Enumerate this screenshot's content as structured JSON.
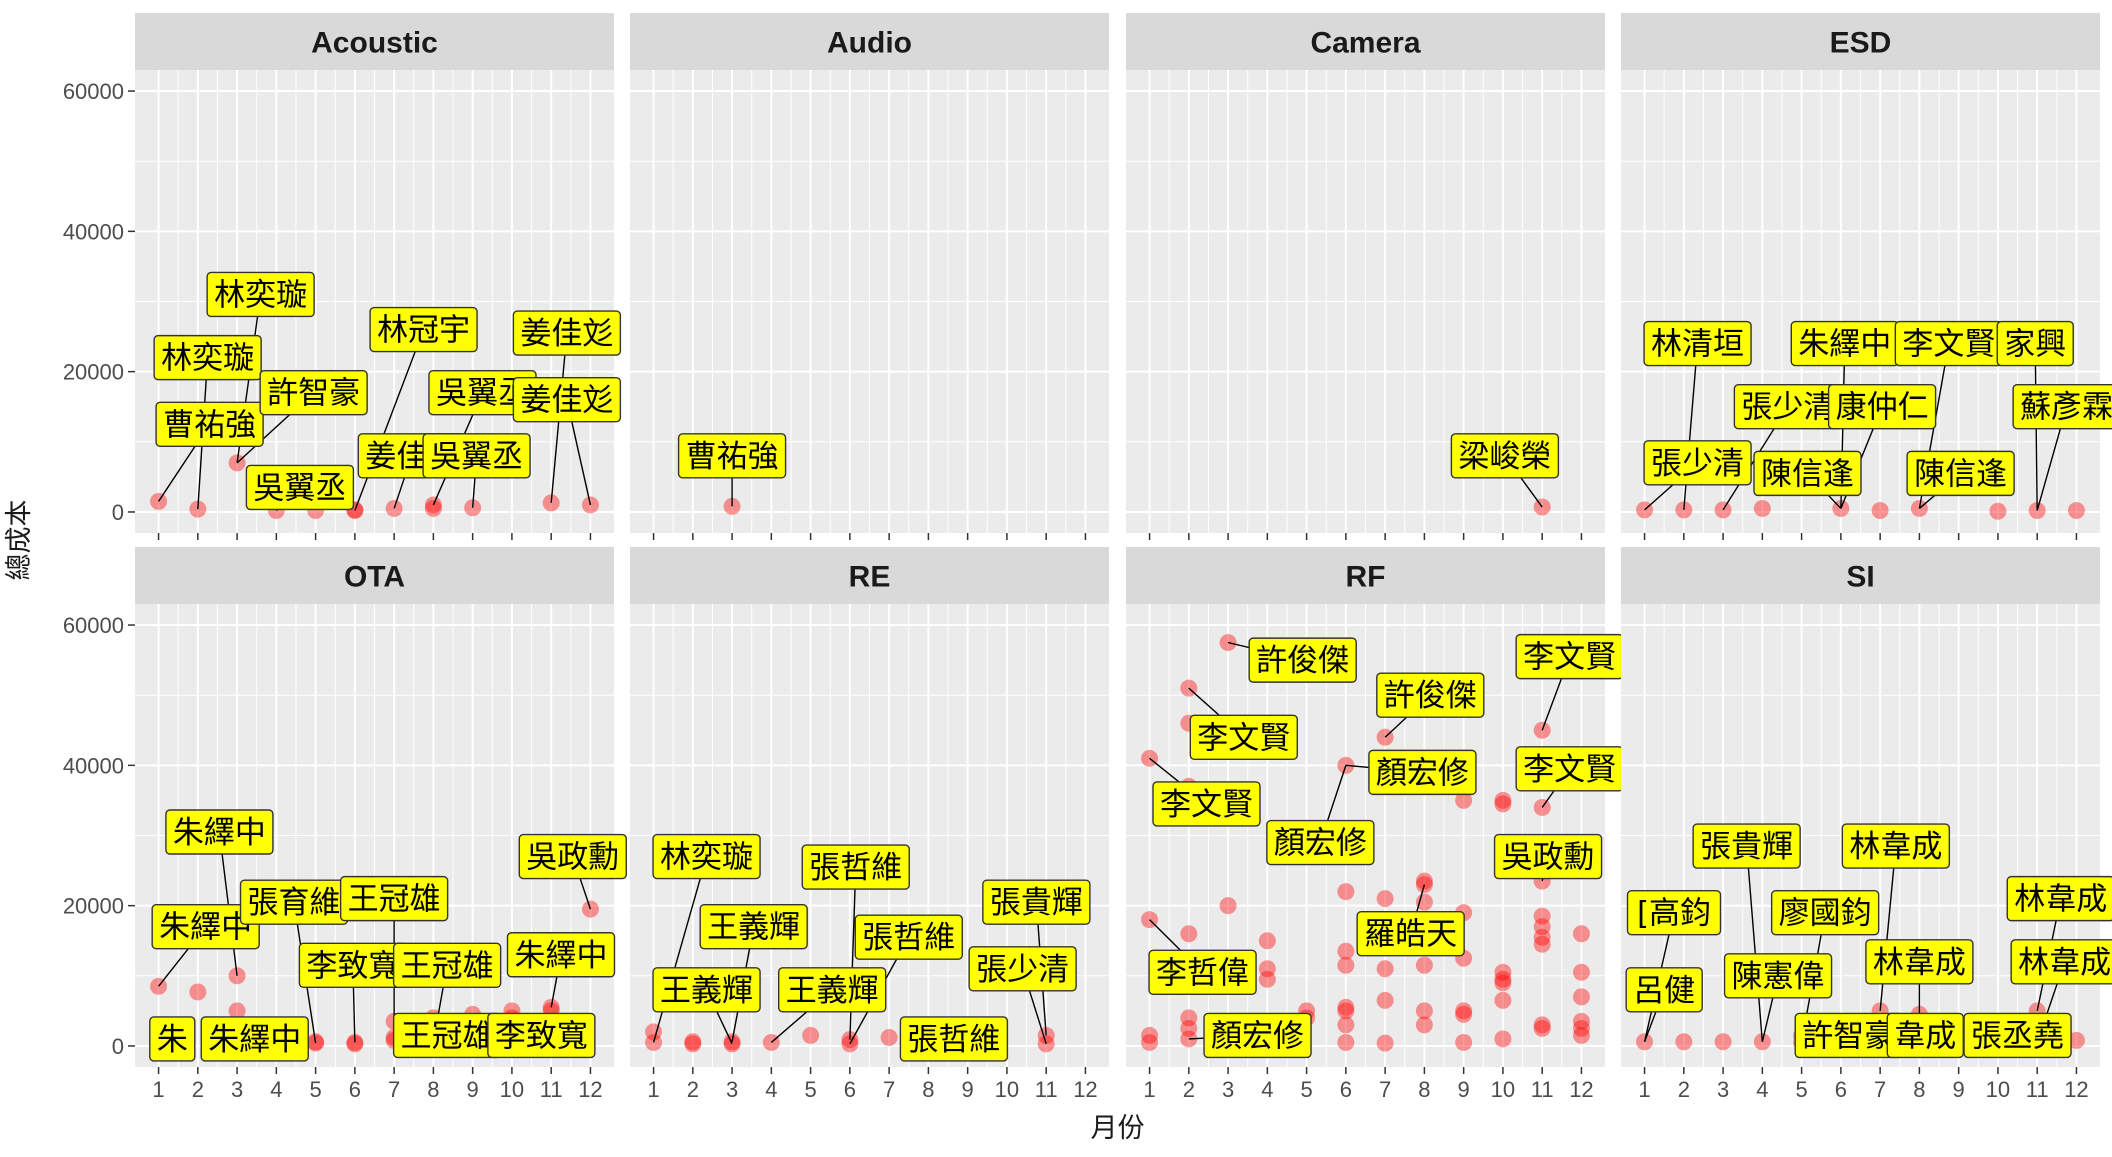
{
  "chart_data": {
    "type": "scatter",
    "facet_layout": "2 rows x 4 columns",
    "xlabel": "月份",
    "ylabel": "總成本",
    "x_ticks": [
      "1",
      "2",
      "3",
      "4",
      "5",
      "6",
      "7",
      "8",
      "9",
      "10",
      "11",
      "12"
    ],
    "y_ticks": [
      "0",
      "20000",
      "40000",
      "60000"
    ],
    "xlim": [
      0.4,
      12.6
    ],
    "ylim": [
      -3000,
      63000
    ],
    "grid": true,
    "point_color": "#ff0000",
    "point_opacity": 0.4,
    "label_fill": "#ffff00",
    "panel_background": "#ebebeb",
    "strip_background": "#d9d9d9",
    "panels": [
      {
        "name": "Acoustic",
        "points": [
          [
            1,
            1500
          ],
          [
            2,
            400
          ],
          [
            3,
            7000
          ],
          [
            4,
            200
          ],
          [
            5,
            200
          ],
          [
            6,
            200
          ],
          [
            6,
            300
          ],
          [
            7,
            500
          ],
          [
            8,
            500
          ],
          [
            8,
            1000
          ],
          [
            9,
            600
          ],
          [
            11,
            1300
          ],
          [
            12,
            1000
          ]
        ],
        "labels": [
          {
            "text": "林奕璇",
            "x": 3,
            "y": 7000,
            "lx": 3.6,
            "ly": 31000
          },
          {
            "text": "林奕璇",
            "x": 2,
            "y": 400,
            "lx": 2.25,
            "ly": 22000
          },
          {
            "text": "曹祐強",
            "x": 1,
            "y": 1500,
            "lx": 2.3,
            "ly": 12500
          },
          {
            "text": "許智豪",
            "x": 3,
            "y": 7000,
            "lx": 4.95,
            "ly": 17000
          },
          {
            "text": "吳翼丞",
            "x": 4,
            "y": 200,
            "lx": 4.6,
            "ly": 3500
          },
          {
            "text": "林冠宇",
            "x": 6,
            "y": 200,
            "lx": 7.75,
            "ly": 26000
          },
          {
            "text": "姜佳彣",
            "x": 7,
            "y": 500,
            "lx": 7.45,
            "ly": 8000
          },
          {
            "text": "吳翼丞",
            "x": 8,
            "y": 1000,
            "lx": 9.25,
            "ly": 17000
          },
          {
            "text": "吳翼丞",
            "x": 9,
            "y": 600,
            "lx": 9.1,
            "ly": 8000
          },
          {
            "text": "姜佳彣",
            "x": 11,
            "y": 1300,
            "lx": 11.4,
            "ly": 25500
          },
          {
            "text": "姜佳彣",
            "x": 12,
            "y": 1000,
            "lx": 11.4,
            "ly": 16000
          }
        ]
      },
      {
        "name": "Audio",
        "points": [
          [
            3,
            800
          ]
        ],
        "labels": [
          {
            "text": "曹祐強",
            "x": 3,
            "y": 800,
            "lx": 3,
            "ly": 8000
          }
        ]
      },
      {
        "name": "Camera",
        "points": [
          [
            11,
            700
          ]
        ],
        "labels": [
          {
            "text": "梁峻榮",
            "x": 11,
            "y": 700,
            "lx": 10.05,
            "ly": 8000
          }
        ]
      },
      {
        "name": "ESD",
        "points": [
          [
            1,
            300
          ],
          [
            2,
            300
          ],
          [
            3,
            300
          ],
          [
            4,
            500
          ],
          [
            6,
            500
          ],
          [
            7,
            200
          ],
          [
            8,
            500
          ],
          [
            10,
            100
          ],
          [
            11,
            200
          ],
          [
            12,
            200
          ]
        ],
        "labels": [
          {
            "text": "林清垣",
            "x": 2,
            "y": 300,
            "lx": 2.35,
            "ly": 24000
          },
          {
            "text": "張少清",
            "x": 1,
            "y": 300,
            "lx": 2.35,
            "ly": 7000
          },
          {
            "text": "張少清",
            "x": 3,
            "y": 300,
            "lx": 4.65,
            "ly": 15000
          },
          {
            "text": "朱繹中",
            "x": 6,
            "y": 500,
            "lx": 6.1,
            "ly": 24000
          },
          {
            "text": "康仲仁",
            "x": 6,
            "y": 500,
            "lx": 7.05,
            "ly": 15000
          },
          {
            "text": "陳信逢",
            "x": 6,
            "y": 500,
            "lx": 5.15,
            "ly": 5500
          },
          {
            "text": "李文賢",
            "x": 8,
            "y": 500,
            "lx": 8.75,
            "ly": 24000
          },
          {
            "text": "家興",
            "x": 11,
            "y": 200,
            "lx": 10.95,
            "ly": 24000
          },
          {
            "text": "陳信逢",
            "x": 8,
            "y": 500,
            "lx": 9.05,
            "ly": 5500
          },
          {
            "text": "蘇彥霖",
            "x": 11,
            "y": 200,
            "lx": 11.75,
            "ly": 15000
          }
        ]
      },
      {
        "name": "OTA",
        "points": [
          [
            1,
            8500
          ],
          [
            2,
            7700
          ],
          [
            3,
            10000
          ],
          [
            3,
            5000
          ],
          [
            4,
            2000
          ],
          [
            4,
            500
          ],
          [
            5,
            400
          ],
          [
            6,
            500
          ],
          [
            6,
            300
          ],
          [
            7,
            3500
          ],
          [
            7,
            1200
          ],
          [
            7,
            800
          ],
          [
            8,
            4000
          ],
          [
            9,
            4500
          ],
          [
            10,
            5000
          ],
          [
            10,
            4000
          ],
          [
            11,
            5500
          ],
          [
            11,
            5000
          ],
          [
            11,
            800
          ],
          [
            12,
            19500
          ],
          [
            5,
            600
          ],
          [
            8,
            600
          ]
        ],
        "labels": [
          {
            "text": "朱繹中",
            "x": 3,
            "y": 10000,
            "lx": 2.55,
            "ly": 30500
          },
          {
            "text": "朱繹中",
            "x": 1,
            "y": 8500,
            "lx": 2.2,
            "ly": 17000
          },
          {
            "text": "朱",
            "x": 1,
            "y": 500,
            "lx": 1.35,
            "ly": 1000
          },
          {
            "text": "朱繹中",
            "x": 3,
            "y": 500,
            "lx": 3.45,
            "ly": 1000
          },
          {
            "text": "張育維",
            "x": 5,
            "y": 400,
            "lx": 4.45,
            "ly": 20500
          },
          {
            "text": "王冠雄",
            "x": 7,
            "y": 1200,
            "lx": 7.0,
            "ly": 21000
          },
          {
            "text": "李致寬",
            "x": 6,
            "y": 500,
            "lx": 5.95,
            "ly": 11500
          },
          {
            "text": "王冠雄",
            "x": 8,
            "y": 600,
            "lx": 8.35,
            "ly": 11500
          },
          {
            "text": "王冠雄",
            "x": 8,
            "y": 600,
            "lx": 8.35,
            "ly": 1500
          },
          {
            "text": "李致寬",
            "x": 10,
            "y": 4000,
            "lx": 10.75,
            "ly": 1500
          },
          {
            "text": "朱繹中",
            "x": 11,
            "y": 5500,
            "lx": 11.25,
            "ly": 13000
          },
          {
            "text": "吳政勳",
            "x": 12,
            "y": 19500,
            "lx": 11.55,
            "ly": 27000
          }
        ]
      },
      {
        "name": "RE",
        "points": [
          [
            1,
            2000
          ],
          [
            1,
            500
          ],
          [
            2,
            600
          ],
          [
            2,
            300
          ],
          [
            3,
            600
          ],
          [
            3,
            300
          ],
          [
            4,
            500
          ],
          [
            5,
            1500
          ],
          [
            6,
            900
          ],
          [
            6,
            300
          ],
          [
            7,
            1200
          ],
          [
            8,
            500
          ],
          [
            11,
            1500
          ],
          [
            11,
            300
          ]
        ],
        "labels": [
          {
            "text": "林奕璇",
            "x": 1,
            "y": 500,
            "lx": 2.35,
            "ly": 27000
          },
          {
            "text": "王義輝",
            "x": 3,
            "y": 600,
            "lx": 3.55,
            "ly": 17000
          },
          {
            "text": "王義輝",
            "x": 3,
            "y": 300,
            "lx": 2.35,
            "ly": 8000
          },
          {
            "text": "張哲維",
            "x": 6,
            "y": 900,
            "lx": 6.15,
            "ly": 25500
          },
          {
            "text": "張哲維",
            "x": 6,
            "y": 300,
            "lx": 7.5,
            "ly": 15500
          },
          {
            "text": "王義輝",
            "x": 4,
            "y": 500,
            "lx": 5.55,
            "ly": 8000
          },
          {
            "text": "張哲維",
            "x": 8,
            "y": 500,
            "lx": 8.65,
            "ly": 1000
          },
          {
            "text": "張貴輝",
            "x": 11,
            "y": 1500,
            "lx": 10.75,
            "ly": 20500
          },
          {
            "text": "張少清",
            "x": 11,
            "y": 300,
            "lx": 10.4,
            "ly": 11000
          }
        ]
      },
      {
        "name": "RF",
        "points": [
          [
            1,
            41000
          ],
          [
            1,
            18000
          ],
          [
            1,
            1500
          ],
          [
            1,
            500
          ],
          [
            2,
            51000
          ],
          [
            2,
            46000
          ],
          [
            2,
            37000
          ],
          [
            2,
            16000
          ],
          [
            2,
            4000
          ],
          [
            2,
            2500
          ],
          [
            2,
            1000
          ],
          [
            3,
            57500
          ],
          [
            3,
            20000
          ],
          [
            4,
            15000
          ],
          [
            4,
            11000
          ],
          [
            4,
            9500
          ],
          [
            5,
            5000
          ],
          [
            5,
            4000
          ],
          [
            6,
            40000
          ],
          [
            6,
            22000
          ],
          [
            6,
            13500
          ],
          [
            6,
            11500
          ],
          [
            6,
            5500
          ],
          [
            6,
            5000
          ],
          [
            6,
            3000
          ],
          [
            6,
            500
          ],
          [
            7,
            44000
          ],
          [
            7,
            21000
          ],
          [
            7,
            11000
          ],
          [
            7,
            6500
          ],
          [
            7,
            400
          ],
          [
            8,
            23500
          ],
          [
            8,
            23000
          ],
          [
            8,
            20500
          ],
          [
            8,
            11500
          ],
          [
            8,
            5000
          ],
          [
            8,
            3000
          ],
          [
            9,
            35000
          ],
          [
            9,
            19000
          ],
          [
            9,
            12500
          ],
          [
            9,
            5000
          ],
          [
            9,
            4500
          ],
          [
            9,
            500
          ],
          [
            10,
            35000
          ],
          [
            10,
            34500
          ],
          [
            10,
            10500
          ],
          [
            10,
            9500
          ],
          [
            10,
            9000
          ],
          [
            10,
            6500
          ],
          [
            10,
            1000
          ],
          [
            11,
            45000
          ],
          [
            11,
            34000
          ],
          [
            11,
            23500
          ],
          [
            11,
            18500
          ],
          [
            11,
            17000
          ],
          [
            11,
            15500
          ],
          [
            11,
            14500
          ],
          [
            11,
            3000
          ],
          [
            11,
            2500
          ],
          [
            12,
            28500
          ],
          [
            12,
            16000
          ],
          [
            12,
            10500
          ],
          [
            12,
            7000
          ],
          [
            12,
            3500
          ],
          [
            12,
            2500
          ],
          [
            12,
            1500
          ]
        ],
        "labels": [
          {
            "text": "許俊傑",
            "x": 3,
            "y": 57500,
            "lx": 4.9,
            "ly": 55000
          },
          {
            "text": "李文賢",
            "x": 11,
            "y": 45000,
            "lx": 11.7,
            "ly": 55500
          },
          {
            "text": "許俊傑",
            "x": 7,
            "y": 44000,
            "lx": 8.15,
            "ly": 50000
          },
          {
            "text": "李文賢",
            "x": 2,
            "y": 51000,
            "lx": 3.4,
            "ly": 44000
          },
          {
            "text": "顏宏修",
            "x": 6,
            "y": 40000,
            "lx": 7.95,
            "ly": 39000
          },
          {
            "text": "李文賢",
            "x": 11,
            "y": 34000,
            "lx": 11.7,
            "ly": 39500
          },
          {
            "text": "李文賢",
            "x": 1,
            "y": 41000,
            "lx": 2.45,
            "ly": 34500
          },
          {
            "text": "顏宏修",
            "x": 6,
            "y": 40000,
            "lx": 5.35,
            "ly": 29000
          },
          {
            "text": "吳政勳",
            "x": 11,
            "y": 23500,
            "lx": 11.15,
            "ly": 27000
          },
          {
            "text": "羅皓天",
            "x": 8,
            "y": 23000,
            "lx": 7.65,
            "ly": 16000
          },
          {
            "text": "李哲偉",
            "x": 1,
            "y": 18000,
            "lx": 2.35,
            "ly": 10500
          },
          {
            "text": "顏宏修",
            "x": 2,
            "y": 1000,
            "lx": 3.75,
            "ly": 1500
          }
        ]
      },
      {
        "name": "SI",
        "points": [
          [
            1,
            600
          ],
          [
            2,
            600
          ],
          [
            3,
            600
          ],
          [
            4,
            600
          ],
          [
            5,
            1500
          ],
          [
            5,
            500
          ],
          [
            6,
            800
          ],
          [
            7,
            5000
          ],
          [
            7,
            700
          ],
          [
            8,
            4500
          ],
          [
            8,
            600
          ],
          [
            9,
            500
          ],
          [
            10,
            800
          ],
          [
            11,
            5000
          ],
          [
            11,
            500
          ],
          [
            12,
            800
          ]
        ],
        "labels": [
          {
            "text": "張貴輝",
            "x": 4,
            "y": 600,
            "lx": 3.6,
            "ly": 28500
          },
          {
            "text": "林韋成",
            "x": 7,
            "y": 5000,
            "lx": 7.4,
            "ly": 28500
          },
          {
            "text": "[高鈞",
            "x": 1,
            "y": 600,
            "lx": 1.75,
            "ly": 19000
          },
          {
            "text": "廖國鈞",
            "x": 5,
            "y": 500,
            "lx": 5.6,
            "ly": 19000
          },
          {
            "text": "林韋成",
            "x": 11,
            "y": 5000,
            "lx": 11.6,
            "ly": 21000
          },
          {
            "text": "呂健",
            "x": 1,
            "y": 600,
            "lx": 1.5,
            "ly": 8000
          },
          {
            "text": "陳憲偉",
            "x": 4,
            "y": 600,
            "lx": 4.4,
            "ly": 10000
          },
          {
            "text": "林韋成",
            "x": 8,
            "y": 4500,
            "lx": 8.0,
            "ly": 12000
          },
          {
            "text": "林韋成",
            "x": 11,
            "y": 500,
            "lx": 11.7,
            "ly": 12000
          },
          {
            "text": "許智豪",
            "x": 6,
            "y": 800,
            "lx": 6.2,
            "ly": 1500
          },
          {
            "text": "韋成",
            "x": 8,
            "y": 600,
            "lx": 8.15,
            "ly": 1500
          },
          {
            "text": "張丞堯",
            "x": 11,
            "y": 500,
            "lx": 10.5,
            "ly": 1500
          }
        ]
      }
    ]
  }
}
